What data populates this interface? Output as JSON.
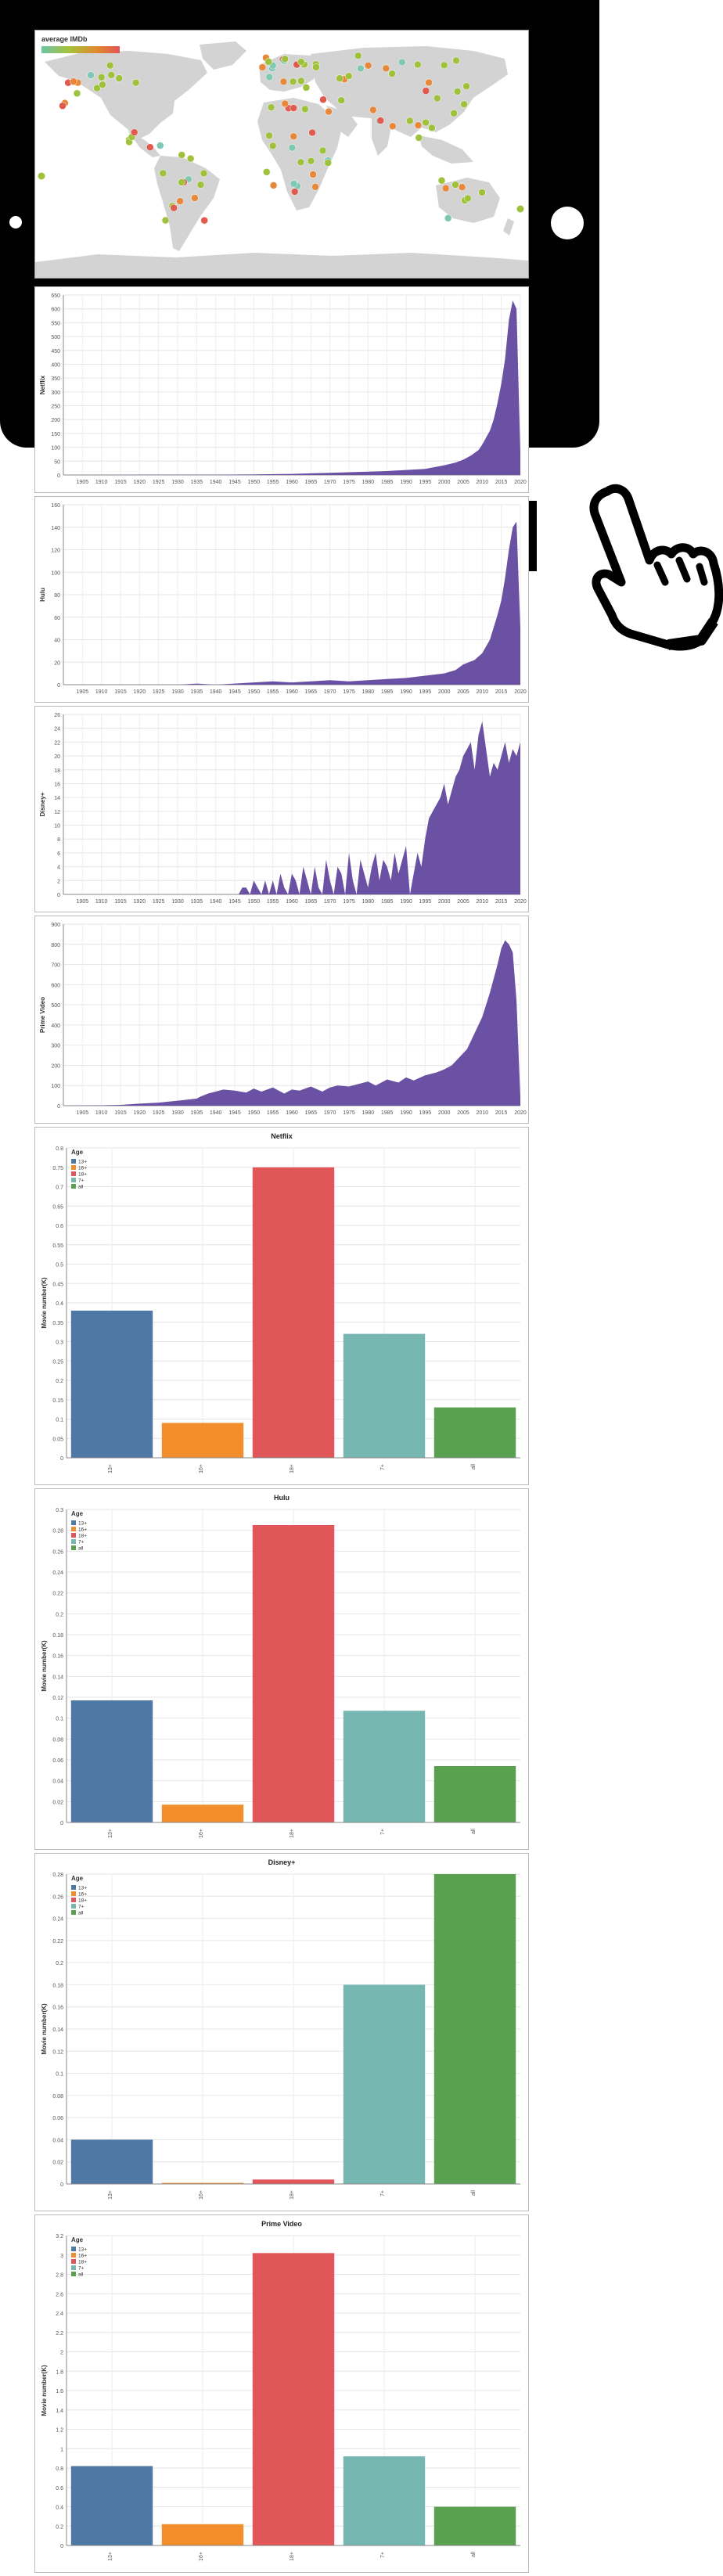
{
  "map": {
    "legend_title": "average IMDb",
    "legend_colors": [
      "#6cc5a8",
      "#a6c23a",
      "#e08a2e",
      "#e25555"
    ]
  },
  "colors": {
    "area": "#6a51a3",
    "age": [
      "#4e79a7",
      "#f28e2b",
      "#e15759",
      "#76b7b2",
      "#59a14f"
    ],
    "land": "#d3d3d3",
    "dot_green": "#9fc13b",
    "dot_orange": "#e8883a",
    "dot_teal": "#7ec8b4",
    "dot_red": "#e05a4f"
  },
  "icons": {
    "pointer": "pointing-hand-icon"
  },
  "chart_data": [
    {
      "type": "area",
      "title": "",
      "ylabel": "Netflix",
      "xlim": [
        1900,
        2020
      ],
      "ylim": [
        0,
        650
      ],
      "yticks": [
        0,
        50,
        100,
        150,
        200,
        250,
        300,
        350,
        400,
        450,
        500,
        550,
        600,
        650
      ],
      "xticks": [
        1905,
        1910,
        1915,
        1920,
        1925,
        1930,
        1935,
        1940,
        1945,
        1950,
        1955,
        1960,
        1965,
        1970,
        1975,
        1980,
        1985,
        1990,
        1995,
        2000,
        2005,
        2010,
        2015,
        2020
      ],
      "x": [
        1900,
        1940,
        1950,
        1960,
        1965,
        1970,
        1975,
        1980,
        1985,
        1990,
        1995,
        2000,
        2003,
        2005,
        2007,
        2009,
        2010,
        2011,
        2012,
        2013,
        2014,
        2015,
        2016,
        2017,
        2018,
        2019,
        2020
      ],
      "y": [
        0,
        1,
        2,
        4,
        6,
        8,
        10,
        12,
        14,
        18,
        22,
        35,
        45,
        55,
        70,
        90,
        110,
        135,
        160,
        200,
        260,
        330,
        420,
        560,
        630,
        600,
        80
      ]
    },
    {
      "type": "area",
      "title": "",
      "ylabel": "Hulu",
      "xlim": [
        1900,
        2020
      ],
      "ylim": [
        0,
        160
      ],
      "yticks": [
        0,
        20,
        40,
        60,
        80,
        100,
        120,
        140,
        160
      ],
      "xticks": [
        1905,
        1910,
        1915,
        1920,
        1925,
        1930,
        1935,
        1940,
        1945,
        1950,
        1955,
        1960,
        1965,
        1970,
        1975,
        1980,
        1985,
        1990,
        1995,
        2000,
        2005,
        2010,
        2015,
        2020
      ],
      "x": [
        1900,
        1930,
        1935,
        1940,
        1950,
        1955,
        1960,
        1965,
        1970,
        1975,
        1980,
        1985,
        1990,
        1995,
        2000,
        2003,
        2005,
        2008,
        2010,
        2012,
        2014,
        2015,
        2016,
        2017,
        2018,
        2019,
        2020
      ],
      "y": [
        0,
        0,
        1,
        0,
        2,
        3,
        2,
        3,
        4,
        3,
        4,
        5,
        6,
        8,
        10,
        13,
        18,
        22,
        28,
        40,
        62,
        75,
        95,
        120,
        140,
        145,
        50
      ]
    },
    {
      "type": "area",
      "title": "",
      "ylabel": "Disney+",
      "xlim": [
        1900,
        2020
      ],
      "ylim": [
        0,
        26
      ],
      "yticks": [
        0,
        2,
        4,
        6,
        8,
        10,
        12,
        14,
        16,
        18,
        20,
        22,
        24,
        26
      ],
      "xticks": [
        1905,
        1910,
        1915,
        1920,
        1925,
        1930,
        1935,
        1940,
        1945,
        1950,
        1955,
        1960,
        1965,
        1970,
        1975,
        1980,
        1985,
        1990,
        1995,
        2000,
        2005,
        2010,
        2015,
        2020
      ],
      "x": [
        1900,
        1920,
        1921,
        1922,
        1923,
        1924,
        1925,
        1926,
        1927,
        1928,
        1929,
        1930,
        1931,
        1932,
        1933,
        1934,
        1935,
        1936,
        1937,
        1938,
        1939,
        1940,
        1941,
        1942,
        1943,
        1944,
        1945,
        1946,
        1947,
        1948,
        1949,
        1950,
        1951,
        1952,
        1953,
        1954,
        1955,
        1956,
        1957,
        1958,
        1959,
        1960,
        1961,
        1962,
        1963,
        1964,
        1965,
        1966,
        1967,
        1968,
        1969,
        1970,
        1971,
        1972,
        1973,
        1974,
        1975,
        1976,
        1977,
        1978,
        1979,
        1980,
        1981,
        1982,
        1983,
        1984,
        1985,
        1986,
        1987,
        1988,
        1989,
        1990,
        1991,
        1992,
        1993,
        1994,
        1995,
        1996,
        1997,
        1998,
        1999,
        2000,
        2001,
        2002,
        2003,
        2004,
        2005,
        2006,
        2007,
        2008,
        2009,
        2010,
        2011,
        2012,
        2013,
        2014,
        2015,
        2016,
        2017,
        2018,
        2019,
        2020
      ],
      "y": [
        0,
        0,
        0,
        0,
        0,
        0,
        0,
        0,
        0,
        0,
        0,
        0,
        0,
        0,
        0,
        0,
        0,
        0,
        0,
        0,
        0,
        0,
        0,
        0,
        0,
        0,
        0,
        0,
        1,
        1,
        0,
        2,
        1,
        0,
        2,
        0,
        2,
        0,
        3,
        1,
        0,
        3,
        2,
        0,
        4,
        2,
        0,
        4,
        1,
        0,
        5,
        2,
        0,
        4,
        3,
        0,
        6,
        2,
        0,
        5,
        3,
        1,
        4,
        6,
        2,
        5,
        4,
        2,
        6,
        3,
        5,
        7,
        0,
        3,
        6,
        4,
        8,
        11,
        12,
        13,
        14,
        16,
        13,
        15,
        17,
        18,
        20,
        21,
        22,
        18,
        23,
        25,
        21,
        17,
        19,
        18,
        20,
        22,
        19,
        21,
        20,
        22
      ]
    },
    {
      "type": "area",
      "title": "",
      "ylabel": "Prime Video",
      "xlim": [
        1900,
        2020
      ],
      "ylim": [
        0,
        900
      ],
      "yticks": [
        0,
        100,
        200,
        300,
        400,
        500,
        600,
        700,
        800,
        900
      ],
      "xticks": [
        1905,
        1910,
        1915,
        1920,
        1925,
        1930,
        1935,
        1940,
        1945,
        1950,
        1955,
        1960,
        1965,
        1970,
        1975,
        1980,
        1985,
        1990,
        1995,
        2000,
        2005,
        2010,
        2015,
        2020
      ],
      "x": [
        1900,
        1910,
        1915,
        1920,
        1925,
        1930,
        1935,
        1936,
        1938,
        1940,
        1942,
        1945,
        1948,
        1950,
        1952,
        1955,
        1958,
        1960,
        1962,
        1965,
        1968,
        1970,
        1972,
        1975,
        1978,
        1980,
        1982,
        1985,
        1988,
        1990,
        1992,
        1995,
        1998,
        2000,
        2002,
        2004,
        2006,
        2008,
        2010,
        2012,
        2014,
        2015,
        2016,
        2017,
        2018,
        2019,
        2020
      ],
      "y": [
        0,
        2,
        4,
        10,
        15,
        25,
        35,
        45,
        60,
        70,
        80,
        75,
        65,
        85,
        70,
        90,
        60,
        80,
        75,
        95,
        70,
        90,
        100,
        95,
        110,
        120,
        100,
        130,
        115,
        140,
        125,
        150,
        165,
        180,
        200,
        240,
        280,
        360,
        440,
        560,
        700,
        780,
        820,
        800,
        760,
        520,
        40
      ]
    },
    {
      "type": "bar",
      "title": "Netflix",
      "ylabel": "Movie number(K)",
      "xlabel": "",
      "legend_title": "Age",
      "categories": [
        "13+",
        "16+",
        "18+",
        "7+",
        "all"
      ],
      "values": [
        0.38,
        0.09,
        0.75,
        0.32,
        0.13
      ],
      "ylim": [
        0,
        0.8
      ],
      "yticks": [
        0,
        0.05,
        0.1,
        0.15,
        0.2,
        0.25,
        0.3,
        0.35,
        0.4,
        0.45,
        0.5,
        0.55,
        0.6,
        0.65,
        0.7,
        0.75,
        0.8
      ],
      "grid": true,
      "legend_position": "top-left"
    },
    {
      "type": "bar",
      "title": "Hulu",
      "ylabel": "Movie number(K)",
      "xlabel": "",
      "legend_title": "Age",
      "categories": [
        "13+",
        "16+",
        "18+",
        "7+",
        "all"
      ],
      "values": [
        0.117,
        0.017,
        0.285,
        0.107,
        0.054
      ],
      "ylim": [
        0,
        0.3
      ],
      "yticks": [
        0,
        0.02,
        0.04,
        0.06,
        0.08,
        0.1,
        0.12,
        0.14,
        0.16,
        0.18,
        0.2,
        0.22,
        0.24,
        0.26,
        0.28,
        0.3
      ],
      "grid": true,
      "legend_position": "top-left"
    },
    {
      "type": "bar",
      "title": "Disney+",
      "ylabel": "Movie number(K)",
      "xlabel": "",
      "legend_title": "Age",
      "categories": [
        "13+",
        "16+",
        "18+",
        "7+",
        "all"
      ],
      "values": [
        0.04,
        0.001,
        0.004,
        0.18,
        0.28
      ],
      "ylim": [
        0,
        0.28
      ],
      "yticks": [
        0,
        0.02,
        0.04,
        0.06,
        0.08,
        0.1,
        0.12,
        0.14,
        0.16,
        0.18,
        0.2,
        0.22,
        0.24,
        0.26,
        0.28
      ],
      "grid": true,
      "legend_position": "top-left"
    },
    {
      "type": "bar",
      "title": "Prime Video",
      "ylabel": "Movie number(K)",
      "xlabel": "",
      "legend_title": "Age",
      "categories": [
        "13+",
        "16+",
        "18+",
        "7+",
        "all"
      ],
      "values": [
        0.82,
        0.22,
        3.02,
        0.92,
        0.4
      ],
      "ylim": [
        0,
        3.2
      ],
      "yticks": [
        0,
        0.2,
        0.4,
        0.6,
        0.8,
        1,
        1.2,
        1.4,
        1.6,
        1.8,
        2,
        2.2,
        2.4,
        2.6,
        2.8,
        3,
        3.2
      ],
      "grid": true,
      "legend_position": "top-left"
    }
  ]
}
